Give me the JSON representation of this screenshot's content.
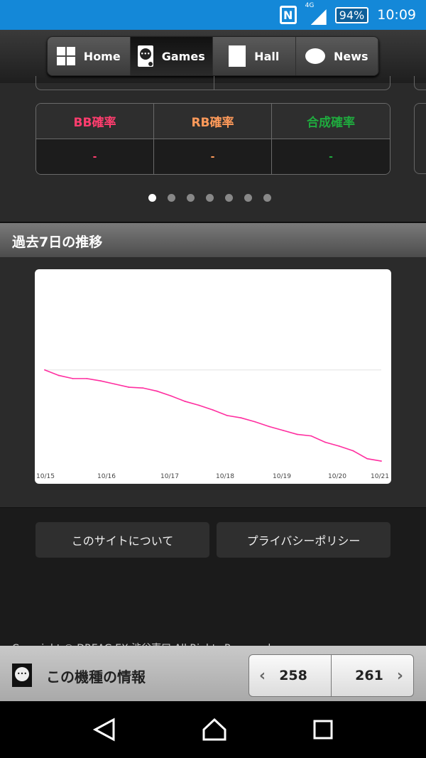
{
  "status_bar": {
    "network": "4G",
    "battery": "94%",
    "time": "10:09",
    "nfc": "N"
  },
  "nav": {
    "items": [
      {
        "label": "Home",
        "icon": "grid-icon"
      },
      {
        "label": "Games",
        "icon": "slot-machine-icon",
        "active": true
      },
      {
        "label": "Hall",
        "icon": "building-icon"
      },
      {
        "label": "News",
        "icon": "speech-bubble-icon"
      }
    ]
  },
  "stats": {
    "columns": [
      {
        "header": "BB確率",
        "value": "-",
        "color": "#ff3d6e"
      },
      {
        "header": "RB確率",
        "value": "-",
        "color": "#ff9a5a"
      },
      {
        "header": "合成確率",
        "value": "-",
        "color": "#1faa3e"
      }
    ]
  },
  "carousel": {
    "pages": 7,
    "active": 1
  },
  "section_title": "過去7日の推移",
  "chart_data": {
    "type": "line",
    "title": "",
    "xlabel": "",
    "ylabel": "",
    "x_ticks": [
      "10/15",
      "10/16",
      "10/17",
      "10/18",
      "10/19",
      "10/20",
      "10/21"
    ],
    "series": [
      {
        "color": "#ff2fa0",
        "values": [
          0,
          -7,
          -11,
          -11,
          -14,
          -18,
          -22,
          -23,
          -27,
          -33,
          -40,
          -45,
          -51,
          -58,
          -61,
          -66,
          -72,
          -77,
          -82,
          -84,
          -92,
          -97,
          -103,
          -113,
          -116
        ]
      }
    ],
    "reference_line": 0,
    "ylim": [
      -125,
      110
    ],
    "grid": false,
    "legend": "none"
  },
  "footer": {
    "about": "このサイトについて",
    "privacy": "プライバシーポリシー",
    "copyright": "Copyright © DREAG EX 渋谷東口 All Rights Reserved."
  },
  "bottom_bar": {
    "title": "この機種の情報",
    "prev": "258",
    "next": "261"
  }
}
